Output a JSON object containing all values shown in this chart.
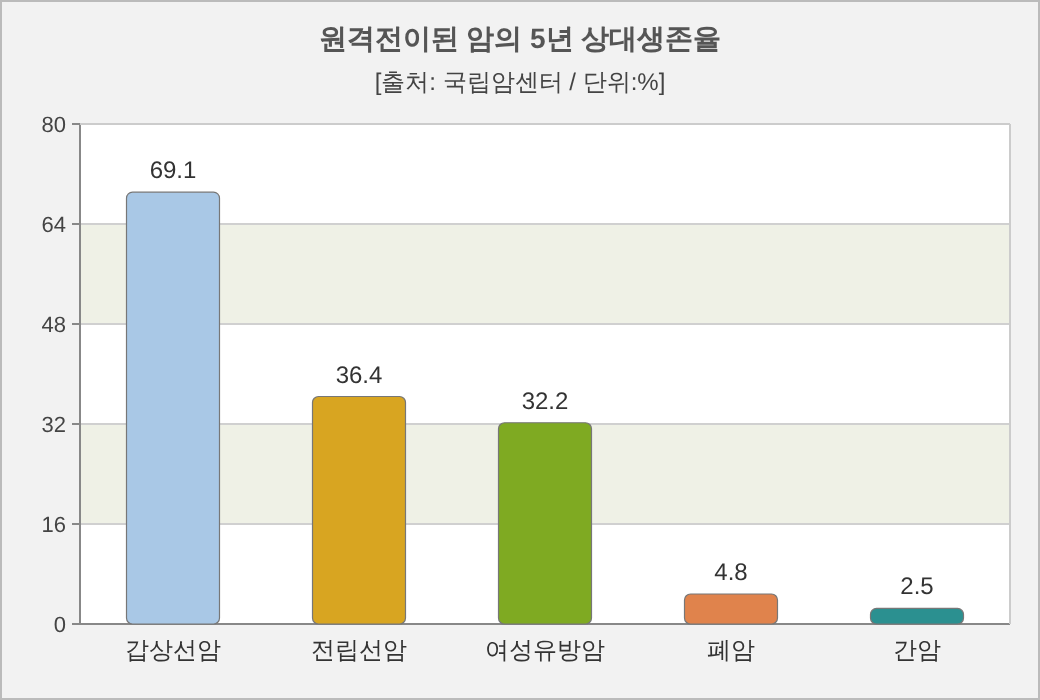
{
  "chart_data": {
    "type": "bar",
    "title": "원격전이된 암의 5년 상대생존율",
    "subtitle": "[출처: 국립암센터 / 단위:%]",
    "categories": [
      "갑상선암",
      "전립선암",
      "여성유방암",
      "폐암",
      "간암"
    ],
    "values": [
      69.1,
      36.4,
      32.2,
      4.8,
      2.5
    ],
    "colors": [
      "#a9c8e6",
      "#d8a521",
      "#7faa22",
      "#e0834c",
      "#2b9090"
    ],
    "ylim": [
      0,
      80
    ],
    "yticks": [
      0,
      16,
      32,
      48,
      64,
      80
    ],
    "grid": "y",
    "data_labels": true
  }
}
